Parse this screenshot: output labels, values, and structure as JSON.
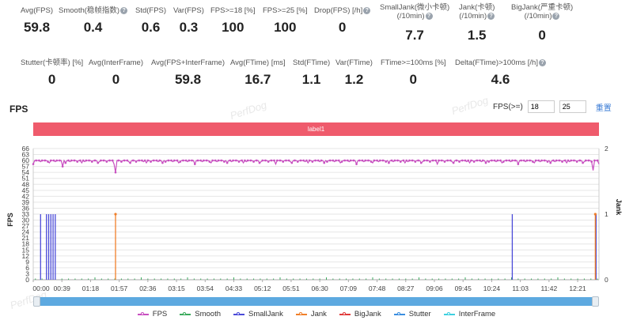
{
  "metrics_row1": [
    {
      "label": "Avg(FPS)",
      "value": "59.8",
      "help": false
    },
    {
      "label": "Smooth(稳帧指数)",
      "value": "0.4",
      "help": true
    },
    {
      "label": "Std(FPS)",
      "value": "0.6",
      "help": false
    },
    {
      "label": "Var(FPS)",
      "value": "0.3",
      "help": false
    },
    {
      "label": "FPS>=18 [%]",
      "value": "100",
      "help": false
    },
    {
      "label": "FPS>=25 [%]",
      "value": "100",
      "help": false
    },
    {
      "label": "Drop(FPS) [/h]",
      "value": "0",
      "help": true
    },
    {
      "label": "SmallJank(微小卡顿)",
      "label2": "(/10min)",
      "value": "7.7",
      "help": true
    },
    {
      "label": "Jank(卡顿)",
      "label2": "(/10min)",
      "value": "1.5",
      "help": true
    },
    {
      "label": "BigJank(严重卡顿)",
      "label2": "(/10min)",
      "value": "0",
      "help": true
    }
  ],
  "metrics_row2": [
    {
      "label": "Stutter(卡顿率) [%]",
      "value": "0",
      "help": false
    },
    {
      "label": "Avg(InterFrame)",
      "value": "0",
      "help": false
    },
    {
      "label": "Avg(FPS+InterFrame)",
      "value": "59.8",
      "help": false
    },
    {
      "label": "Avg(FTime) [ms]",
      "value": "16.7",
      "help": false
    },
    {
      "label": "Std(FTime)",
      "value": "1.1",
      "help": false
    },
    {
      "label": "Var(FTime)",
      "value": "1.2",
      "help": false
    },
    {
      "label": "FTime>=100ms [%]",
      "value": "0",
      "help": false
    },
    {
      "label": "Delta(FTime)>100ms [/h]",
      "value": "4.6",
      "help": true
    }
  ],
  "section_title": "FPS",
  "fps_threshold": {
    "label": "FPS(>=)",
    "low": "18",
    "high": "25",
    "reset_label": "重置"
  },
  "label_bar": "label1",
  "watermark": "PerfDog",
  "colors": {
    "FPS": "#c84fc0",
    "Smooth": "#3aaa5c",
    "SmallJank": "#4a4ad8",
    "Jank": "#f07f2a",
    "BigJank": "#e03a3a",
    "Stutter": "#3a8ee0",
    "InterFrame": "#3ed0e0",
    "label": "#ef5b6c"
  },
  "chart_data": {
    "type": "line",
    "ylabel_left": "FPS",
    "ylabel_right": "Jank",
    "y_ticks_left": [
      0,
      3,
      6,
      9,
      12,
      15,
      18,
      21,
      24,
      27,
      30,
      33,
      36,
      39,
      42,
      45,
      48,
      51,
      54,
      57,
      60,
      63,
      66
    ],
    "ylim_left": [
      0,
      66
    ],
    "y_ticks_right": [
      0,
      1,
      2
    ],
    "ylim_right": [
      0,
      2
    ],
    "x_ticks": [
      "00:00",
      "00:39",
      "01:18",
      "01:57",
      "02:36",
      "03:15",
      "03:54",
      "04:33",
      "05:12",
      "05:51",
      "06:30",
      "07:09",
      "07:48",
      "08:27",
      "09:06",
      "09:45",
      "10:24",
      "11:03",
      "11:42",
      "12:21"
    ],
    "x_range_seconds": [
      0,
      770
    ],
    "legend": [
      "FPS",
      "Smooth",
      "SmallJank",
      "Jank",
      "BigJank",
      "Stutter",
      "InterFrame"
    ],
    "grid": true,
    "series": [
      {
        "name": "FPS",
        "typical": 60,
        "dips": [
          {
            "t": 112,
            "v": 54
          },
          {
            "t": 25,
            "v": 57
          },
          {
            "t": 40,
            "v": 57
          },
          {
            "t": 762,
            "v": 55
          }
        ]
      },
      {
        "name": "SmallJank",
        "spikes_t": [
          10,
          18,
          21,
          24,
          27,
          30,
          652,
          766
        ],
        "value": 1
      },
      {
        "name": "Jank",
        "spikes_t": [
          112,
          765
        ],
        "value": 1
      },
      {
        "name": "Smooth",
        "level": "near zero"
      }
    ]
  }
}
